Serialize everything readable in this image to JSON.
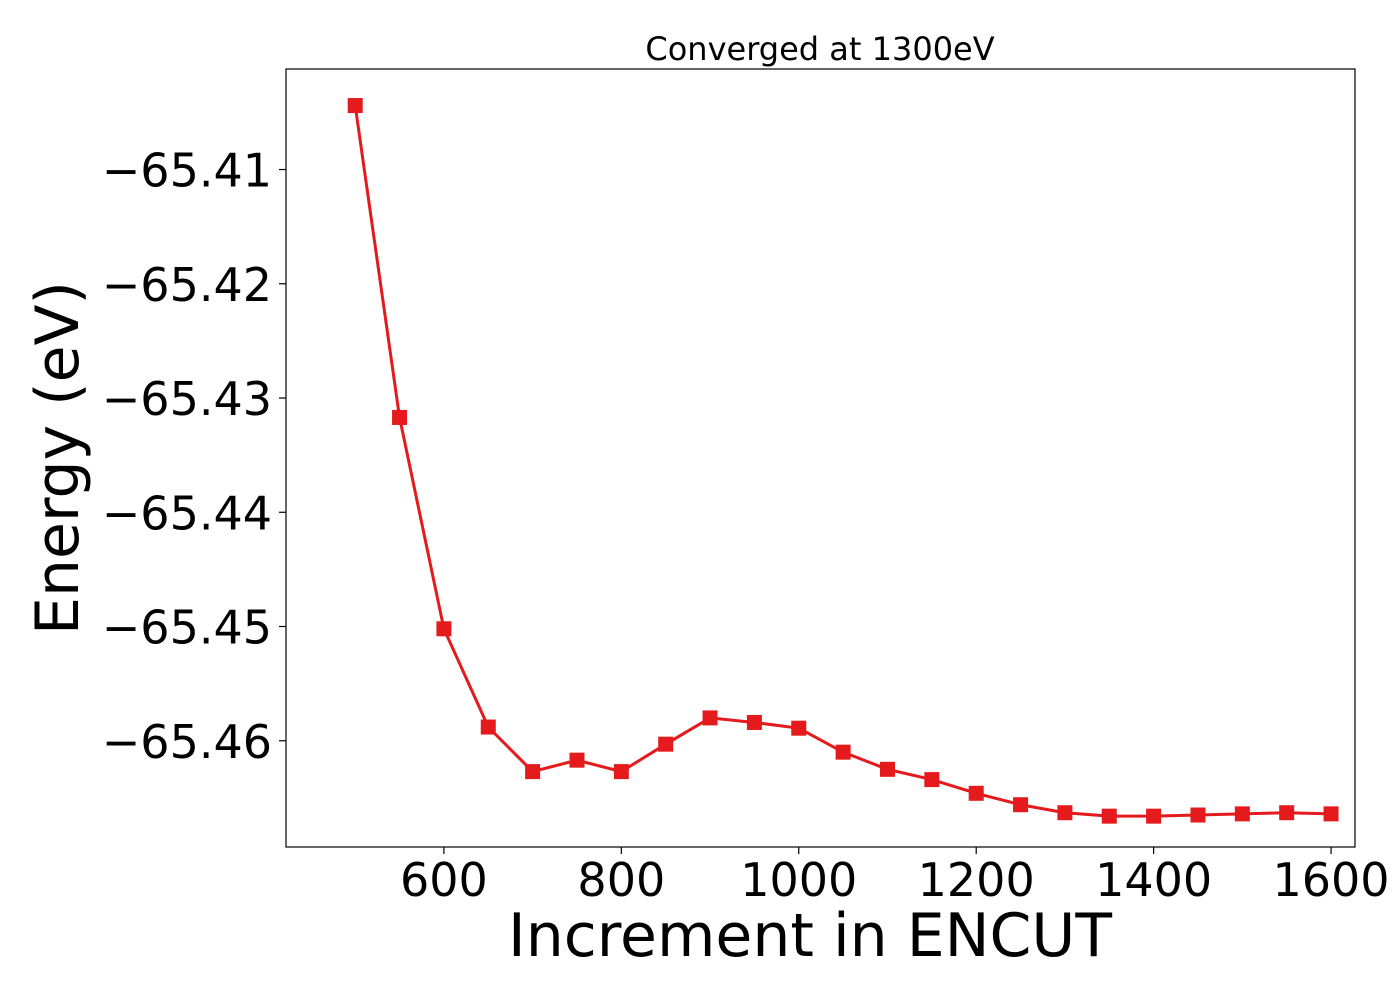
{
  "chart_data": {
    "type": "line",
    "title": "Converged at 1300eV",
    "xlabel": "Increment in ENCUT",
    "ylabel": "Energy (eV)",
    "xlim": [
      422,
      1627
    ],
    "ylim": [
      -65.4693,
      -65.4012
    ],
    "x_ticks": [
      600,
      800,
      1000,
      1200,
      1400,
      1600
    ],
    "x_tick_labels": [
      "600",
      "800",
      "1000",
      "1200",
      "1400",
      "1600"
    ],
    "y_ticks": [
      -65.41,
      -65.42,
      -65.43,
      -65.44,
      -65.45,
      -65.46
    ],
    "y_tick_labels": [
      "−65.41",
      "−65.42",
      "−65.43",
      "−65.44",
      "−65.45",
      "−65.46"
    ],
    "grid": false,
    "series": [
      {
        "color": "#e41a1c",
        "marker": "square",
        "x": [
          500,
          550,
          600,
          650,
          700,
          750,
          800,
          850,
          900,
          950,
          1000,
          1050,
          1100,
          1150,
          1200,
          1250,
          1300,
          1350,
          1400,
          1450,
          1500,
          1550,
          1600
        ],
        "values": [
          -65.4044,
          -65.4317,
          -65.4502,
          -65.4588,
          -65.4627,
          -65.4617,
          -65.4627,
          -65.4603,
          -65.458,
          -65.4584,
          -65.4589,
          -65.461,
          -65.4625,
          -65.4634,
          -65.4646,
          -65.4656,
          -65.4663,
          -65.4666,
          -65.4666,
          -65.4665,
          -65.4664,
          -65.4663,
          -65.4664
        ]
      }
    ]
  }
}
